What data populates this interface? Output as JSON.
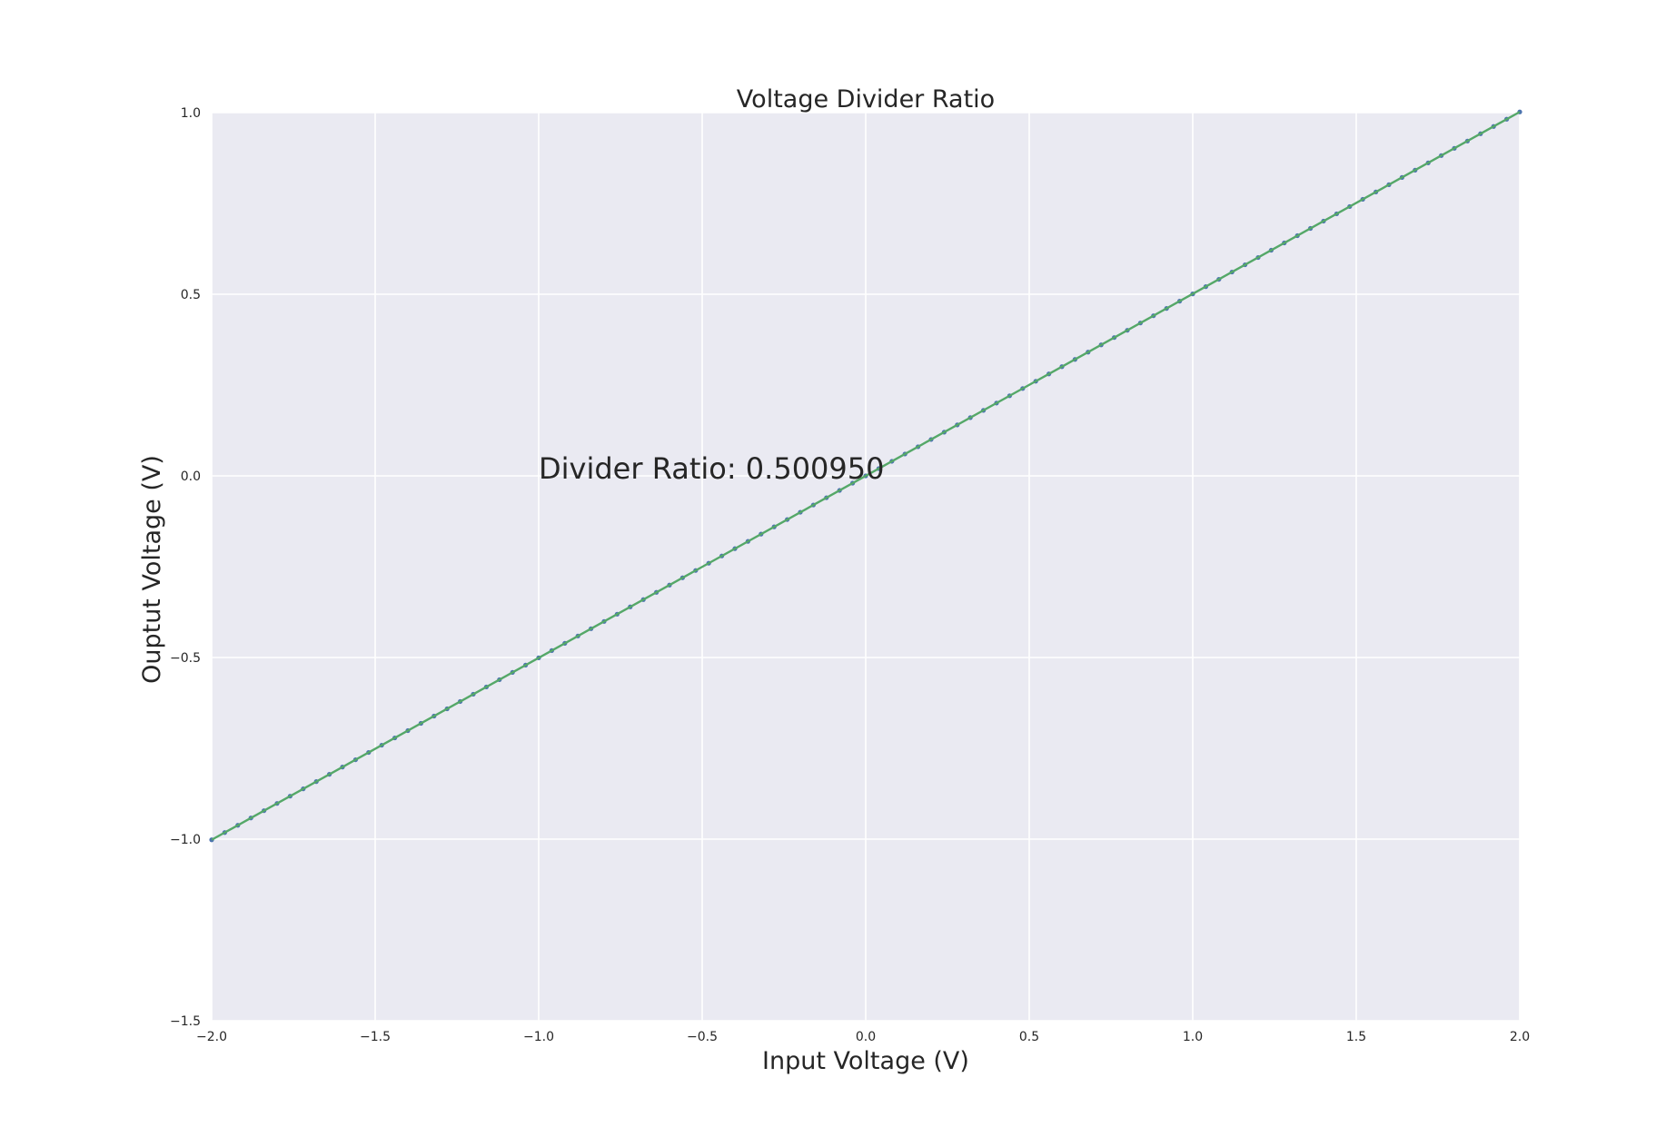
{
  "chart_data": {
    "type": "line",
    "title": "Voltage Divider Ratio",
    "xlabel": "Input Voltage (V)",
    "ylabel": "Ouptut Voltage (V)",
    "xlim": [
      -2.0,
      2.0
    ],
    "ylim": [
      -1.5,
      1.0
    ],
    "x_ticks": [
      "−2.0",
      "−1.5",
      "−1.0",
      "−0.5",
      "0.0",
      "0.5",
      "1.0",
      "1.5",
      "2.0"
    ],
    "y_ticks": [
      "1.0",
      "0.5",
      "0.0",
      "−0.5",
      "−1.0",
      "−1.5"
    ],
    "grid": true,
    "annotation": "Divider Ratio: 0.500950",
    "series": [
      {
        "kind": "points",
        "x_start": -2.0,
        "x_end": 2.0,
        "count": 101,
        "slope": 0.50095,
        "color": "#4c72b0"
      },
      {
        "kind": "fit-line",
        "x": [
          -2.0,
          2.0
        ],
        "y": [
          -1.0019,
          1.0019
        ],
        "color": "#55a868"
      }
    ],
    "colors": {
      "plot_bg": "#eaeaf2",
      "grid": "#ffffff",
      "text": "#262626"
    }
  }
}
